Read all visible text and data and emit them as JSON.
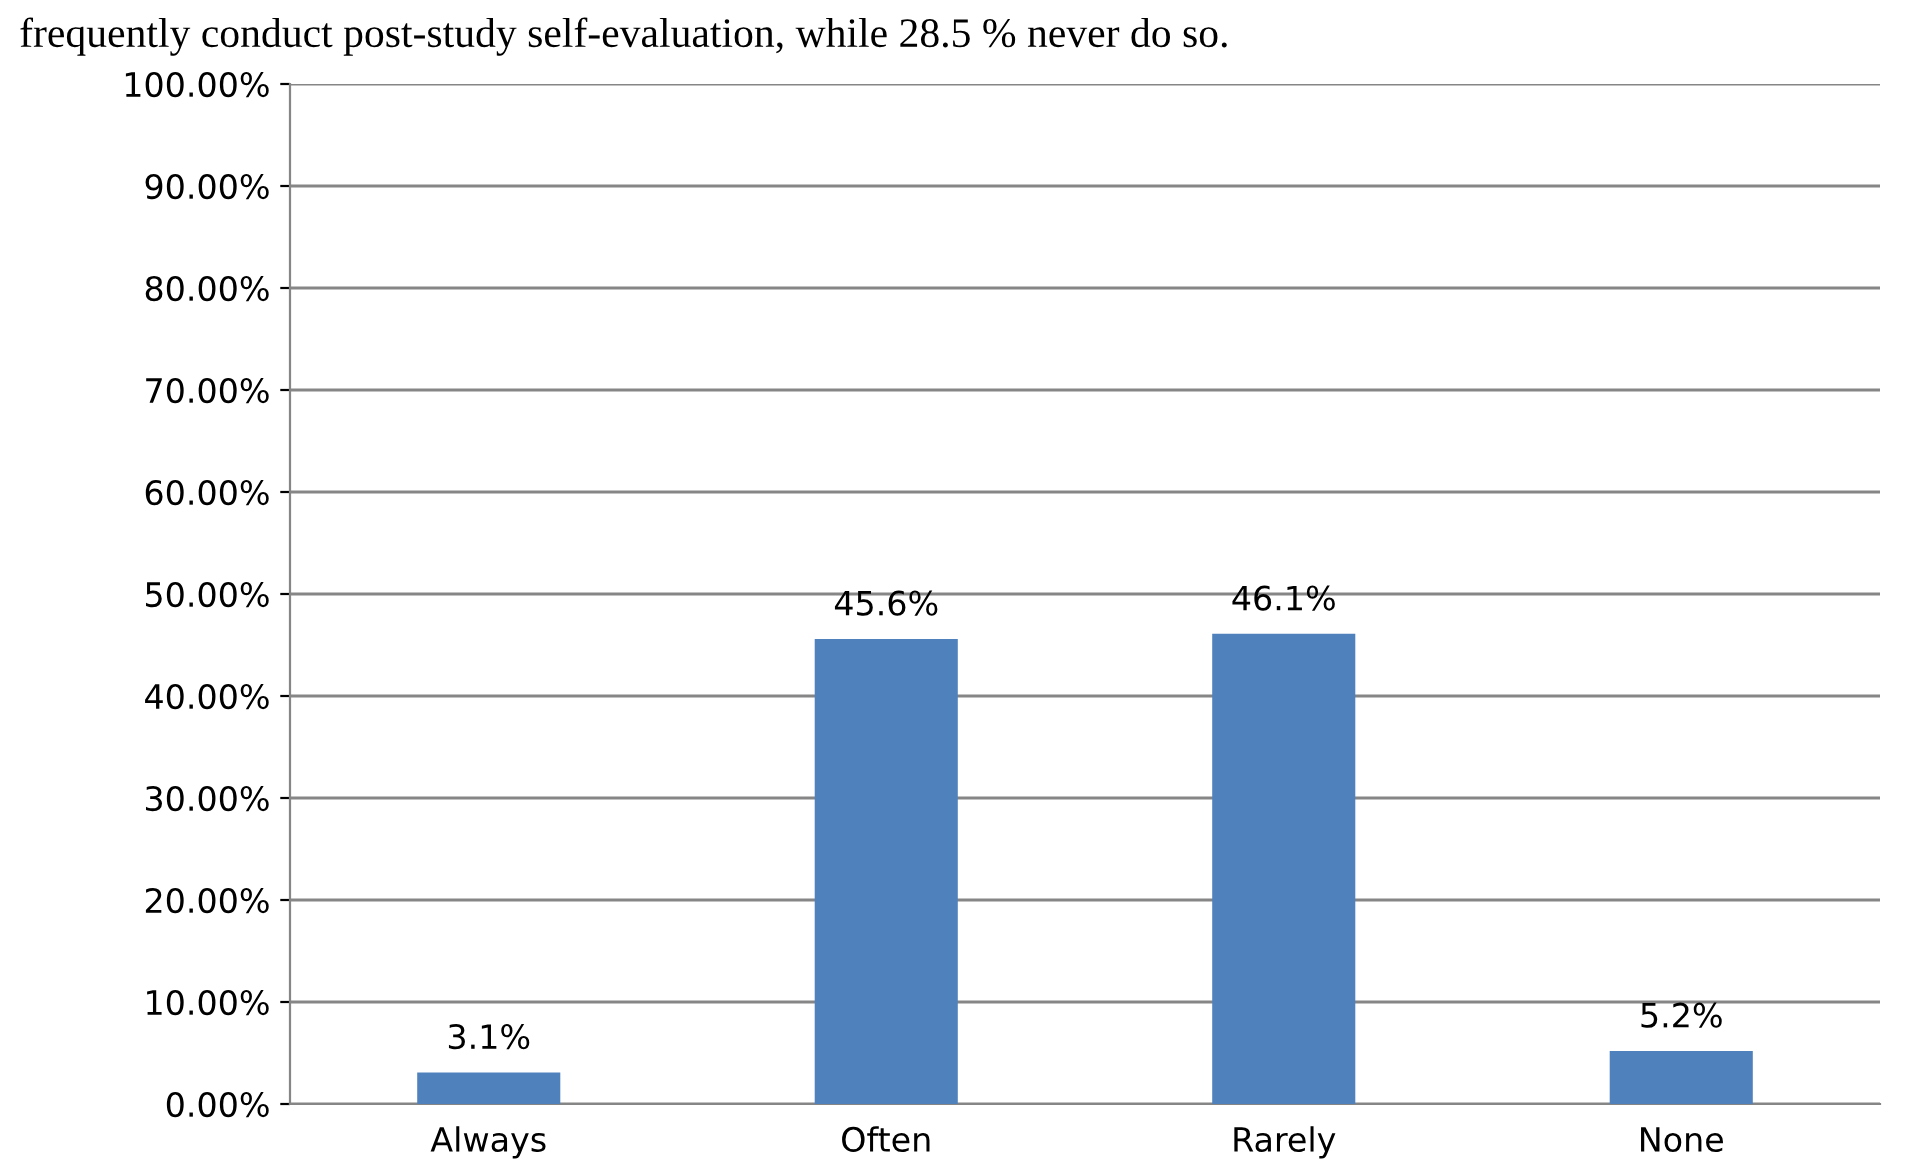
{
  "chart_data": {
    "type": "bar",
    "annotations": [
      "frequently conduct post-study self-evaluation, while 28.5 % never do so."
    ],
    "categories": [
      "Always",
      "Often",
      "Rarely",
      "None"
    ],
    "values": [
      3.1,
      45.6,
      46.1,
      5.2
    ],
    "value_labels": [
      "3.1%",
      "45.6%",
      "46.1%",
      "5.2%"
    ],
    "color": "#4f81bd",
    "ylim": [
      0,
      100
    ],
    "yticks": [
      {
        "value": 0,
        "label": "0.00%"
      },
      {
        "value": 10,
        "label": "10.00%"
      },
      {
        "value": 20,
        "label": "20.00%"
      },
      {
        "value": 30,
        "label": "30.00%"
      },
      {
        "value": 40,
        "label": "40.00%"
      },
      {
        "value": 50,
        "label": "50.00%"
      },
      {
        "value": 60,
        "label": "60.00%"
      },
      {
        "value": 70,
        "label": "70.00%"
      },
      {
        "value": 80,
        "label": "80.00%"
      },
      {
        "value": 90,
        "label": "90.00%"
      },
      {
        "value": 100,
        "label": "100.00%"
      }
    ],
    "grid": "y",
    "legend": false
  }
}
